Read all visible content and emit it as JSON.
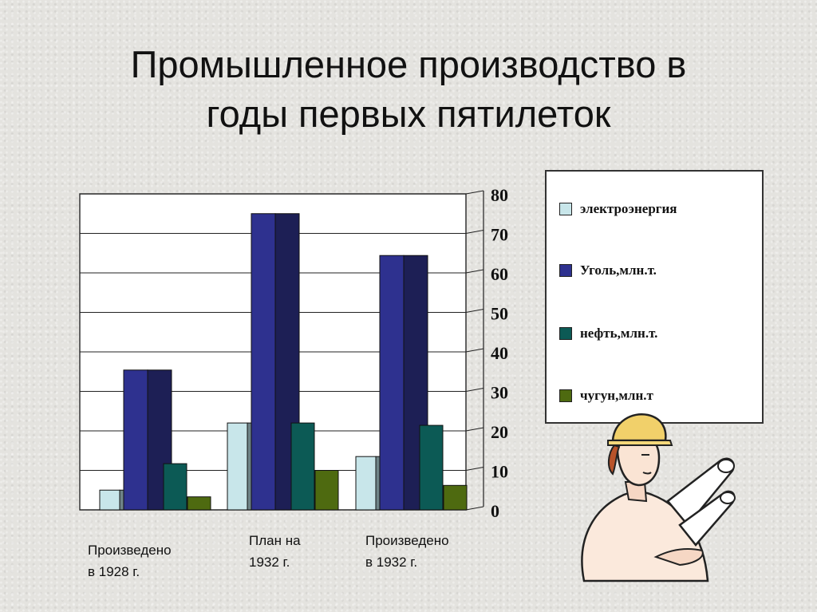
{
  "title_line1": "Промышленное производство в",
  "title_line2": "годы первых пятилеток",
  "categories_text": [
    {
      "line1": "Произведено",
      "line2": "в 1928 г."
    },
    {
      "line1": "План на",
      "line2": "1932 г."
    },
    {
      "line1": "Произведено",
      "line2": "в 1932 г."
    }
  ],
  "legend": [
    {
      "label": "электроэнергия",
      "color": "#c8e6ea"
    },
    {
      "label": "Уголь,млн.т.",
      "color": "#2e318f"
    },
    {
      "label": "нефть,млн.т.",
      "color": "#0c5a55"
    },
    {
      "label": "чугун,млн.т",
      "color": "#4e6a10"
    }
  ],
  "chart_data": {
    "type": "bar",
    "title": "Промышленное производство в годы первых пятилеток",
    "categories": [
      "Произведено в 1928 г.",
      "План на 1932 г.",
      "Произведено в 1932 г."
    ],
    "series": [
      {
        "name": "электроэнергия",
        "values": [
          5,
          22,
          13.5
        ],
        "color": "#c8e6ea",
        "side": "#6f8488"
      },
      {
        "name": "Уголь,млн.т.",
        "values": [
          35.4,
          75,
          64.4
        ],
        "color": "#2e318f",
        "side": "#1d1f55"
      },
      {
        "name": "нефть,млн.т.",
        "values": [
          11.7,
          22,
          21.4
        ],
        "color": "#0c5a55",
        "side": "#0c5a55"
      },
      {
        "name": "чугун,млн.т",
        "values": [
          3.3,
          10,
          6.2
        ],
        "color": "#4e6a10",
        "side": "#4e6a10"
      }
    ],
    "ylim": [
      0,
      80
    ],
    "yticks": [
      0,
      10,
      20,
      30,
      40,
      50,
      60,
      70,
      80
    ],
    "grid": true,
    "legend_position": "right"
  }
}
